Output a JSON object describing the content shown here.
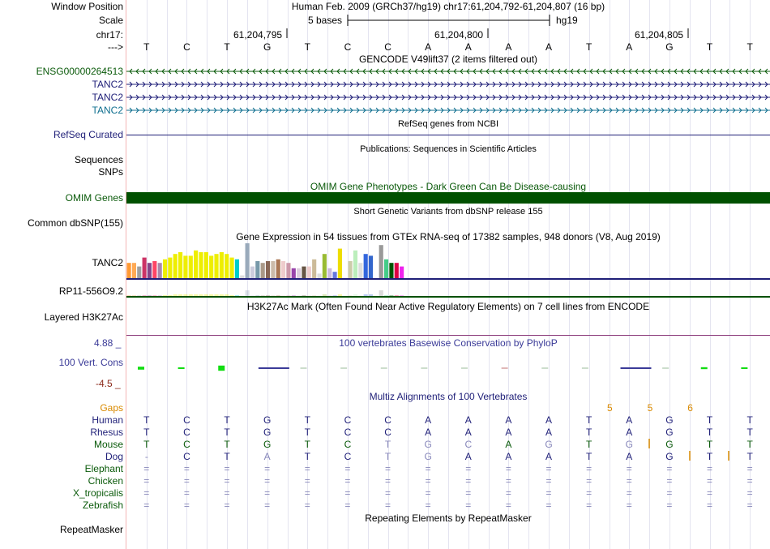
{
  "colors": {
    "navy": "#1f1f78",
    "green": "#0a5a0a",
    "dark_green": "#005000",
    "teal": "#0f6f8f",
    "orange": "#d98a00",
    "maroon": "#8b2a1a",
    "phylop_blue": "#3b3b98",
    "rmsk_bg": "#ffffff"
  },
  "header": {
    "window_position_label": "Window Position",
    "title": "Human Feb. 2009 (GRCh37/hg19)   chr17:61,204,792-61,204,807 (16 bp)",
    "scale_label": "Scale",
    "scale_bar_text": "5 bases",
    "scale_db": "hg19",
    "chr_label": "chr17:",
    "coord_ticks": [
      "61,204,795",
      "61,204,800",
      "61,204,805"
    ],
    "seq_label": "--->"
  },
  "sequence": [
    "T",
    "C",
    "T",
    "G",
    "T",
    "C",
    "C",
    "A",
    "A",
    "A",
    "A",
    "T",
    "A",
    "G",
    "T",
    "T"
  ],
  "gencode": {
    "title": "GENCODE V49lift37 (2 items filtered out)",
    "tracks": [
      {
        "name": "ENSG00000264513",
        "strand": "<",
        "color": "#0a5a0a"
      },
      {
        "name": "TANC2",
        "strand": ">",
        "color": "#1f1f78"
      },
      {
        "name": "TANC2",
        "strand": ">",
        "color": "#1f1f78"
      },
      {
        "name": "TANC2",
        "strand": ">",
        "color": "#0f6f8f"
      }
    ]
  },
  "refseq": {
    "label": "RefSeq Curated",
    "title": "RefSeq genes from NCBI"
  },
  "publications": {
    "title": "Publications: Sequences in Scientific Articles",
    "labels": [
      "Sequences",
      "SNPs"
    ]
  },
  "omim": {
    "title": "OMIM Gene Phenotypes - Dark Green Can Be Disease-causing",
    "label": "OMIM Genes"
  },
  "dbsnp": {
    "title": "Short Genetic Variants from dbSNP release 155",
    "label": "Common dbSNP(155)"
  },
  "gtex": {
    "title": "Gene Expression in 54 tissues from GTEx RNA-seq of 17382 samples, 948 donors (V8, Aug 2019)",
    "genes": [
      "TANC2",
      "RP11-556O9.2"
    ],
    "tissues": [
      {
        "color": "#ff9933",
        "value": 0.45
      },
      {
        "color": "#ffaa55",
        "value": 0.45
      },
      {
        "color": "#a0a0a0",
        "value": 0.35
      },
      {
        "color": "#cc3366",
        "value": 0.6
      },
      {
        "color": "#884488",
        "value": 0.45
      },
      {
        "color": "#ff4466",
        "value": 0.5
      },
      {
        "color": "#aa88aa",
        "value": 0.45
      },
      {
        "color": "#eeee00",
        "value": 0.55
      },
      {
        "color": "#eeee00",
        "value": 0.6
      },
      {
        "color": "#eeee00",
        "value": 0.7
      },
      {
        "color": "#eeee00",
        "value": 0.75
      },
      {
        "color": "#eeee00",
        "value": 0.65
      },
      {
        "color": "#eeee00",
        "value": 0.65
      },
      {
        "color": "#eeee00",
        "value": 0.8
      },
      {
        "color": "#eeee00",
        "value": 0.75
      },
      {
        "color": "#eeee00",
        "value": 0.75
      },
      {
        "color": "#eeee00",
        "value": 0.65
      },
      {
        "color": "#eeee00",
        "value": 0.7
      },
      {
        "color": "#eeee00",
        "value": 0.75
      },
      {
        "color": "#eeee00",
        "value": 0.7
      },
      {
        "color": "#eeee00",
        "value": 0.6
      },
      {
        "color": "#00cccc",
        "value": 0.55
      },
      {
        "color": "#dddddd",
        "value": 0.1
      },
      {
        "color": "#99aabb",
        "value": 1.0
      },
      {
        "color": "#ccccdd",
        "value": 0.35
      },
      {
        "color": "#7799aa",
        "value": 0.5
      },
      {
        "color": "#aa9988",
        "value": 0.45
      },
      {
        "color": "#886655",
        "value": 0.5
      },
      {
        "color": "#ccbbaa",
        "value": 0.5
      },
      {
        "color": "#aa7755",
        "value": 0.55
      },
      {
        "color": "#eecccc",
        "value": 0.5
      },
      {
        "color": "#cc99aa",
        "value": 0.45
      },
      {
        "color": "#9944aa",
        "value": 0.3
      },
      {
        "color": "#ddccdd",
        "value": 0.3
      },
      {
        "color": "#665544",
        "value": 0.35
      },
      {
        "color": "#eecccc",
        "value": 0.35
      },
      {
        "color": "#ccbb99",
        "value": 0.55
      },
      {
        "color": "#dddddd",
        "value": 0.15
      },
      {
        "color": "#99bb33",
        "value": 0.7
      },
      {
        "color": "#ccbbdd",
        "value": 0.3
      },
      {
        "color": "#6677dd",
        "value": 0.2
      },
      {
        "color": "#eedd00",
        "value": 0.85
      },
      {
        "color": "#ffffff",
        "value": 0.0
      },
      {
        "color": "#ccccaa",
        "value": 0.5
      },
      {
        "color": "#bbeebb",
        "value": 0.8
      },
      {
        "color": "#dddddd",
        "value": 0.45
      },
      {
        "color": "#3366dd",
        "value": 0.7
      },
      {
        "color": "#3366cc",
        "value": 0.65
      },
      {
        "color": "#eeeeee",
        "value": 0.0
      },
      {
        "color": "#999999",
        "value": 0.95
      },
      {
        "color": "#44cc88",
        "value": 0.55
      },
      {
        "color": "#005500",
        "value": 0.45
      },
      {
        "color": "#dd0044",
        "value": 0.45
      },
      {
        "color": "#ee22ee",
        "value": 0.35
      }
    ]
  },
  "h3k27ac": {
    "title": "H3K27Ac Mark (Often Found Near Active Regulatory Elements) on 7 cell lines from ENCODE",
    "label": "Layered H3K27Ac"
  },
  "phylop": {
    "title": "100 vertebrates Basewise Conservation by PhyloP",
    "label": "100 Vert. Cons",
    "max_label": "4.88 _",
    "min_label": "-4.5 _",
    "scores": [
      0.9,
      0.1,
      1.6,
      -0.3,
      0.0,
      0.0,
      0.0,
      0.0,
      0.0,
      0.0,
      0.0,
      0.0,
      -0.2,
      0.0,
      0.6,
      0.3
    ]
  },
  "multiz": {
    "title": "Multiz Alignments of 100 Vertebrates",
    "gaps_label": "Gaps",
    "gap_counts": [
      "",
      "",
      "",
      "",
      "",
      "",
      "",
      "",
      "",
      "",
      "",
      "",
      "5",
      "5",
      "6",
      ""
    ],
    "species": [
      {
        "name": "Human",
        "color": "#1f1f78",
        "bases": [
          "T",
          "C",
          "T",
          "G",
          "T",
          "C",
          "C",
          "A",
          "A",
          "A",
          "A",
          "T",
          "A",
          "G",
          "T",
          "T"
        ]
      },
      {
        "name": "Rhesus",
        "color": "#1f1f78",
        "bases": [
          "T",
          "C",
          "T",
          "G",
          "T",
          "C",
          "C",
          "A",
          "A",
          "A",
          "A",
          "T",
          "A",
          "G",
          "T",
          "T"
        ]
      },
      {
        "name": "Mouse",
        "color": "#0a5a0a",
        "bases": [
          "T",
          "C",
          "T",
          "G",
          "T",
          "C",
          "T",
          "G",
          "C",
          "A",
          "G",
          "T",
          "G",
          "G",
          "T",
          "T"
        ]
      },
      {
        "name": "Dog",
        "color": "#1f1f78",
        "bases": [
          "-",
          "C",
          "T",
          "A",
          "T",
          "C",
          "T",
          "G",
          "A",
          "A",
          "A",
          "T",
          "A",
          "G",
          "T",
          "T"
        ]
      },
      {
        "name": "Elephant",
        "color": "#0a5a0a",
        "bases": [
          "=",
          "=",
          "=",
          "=",
          "=",
          "=",
          "=",
          "=",
          "=",
          "=",
          "=",
          "=",
          "=",
          "=",
          "=",
          "="
        ]
      },
      {
        "name": "Chicken",
        "color": "#0a5a0a",
        "bases": [
          "=",
          "=",
          "=",
          "=",
          "=",
          "=",
          "=",
          "=",
          "=",
          "=",
          "=",
          "=",
          "=",
          "=",
          "=",
          "="
        ]
      },
      {
        "name": "X_tropicalis",
        "color": "#0a5a0a",
        "bases": [
          "=",
          "=",
          "=",
          "=",
          "=",
          "=",
          "=",
          "=",
          "=",
          "=",
          "=",
          "=",
          "=",
          "=",
          "=",
          "="
        ]
      },
      {
        "name": "Zebrafish",
        "color": "#0a5a0a",
        "bases": [
          "=",
          "=",
          "=",
          "=",
          "=",
          "=",
          "=",
          "=",
          "=",
          "=",
          "=",
          "=",
          "=",
          "=",
          "=",
          "="
        ]
      }
    ]
  },
  "repeatmasker": {
    "title": "Repeating Elements by RepeatMasker",
    "label": "RepeatMasker"
  }
}
